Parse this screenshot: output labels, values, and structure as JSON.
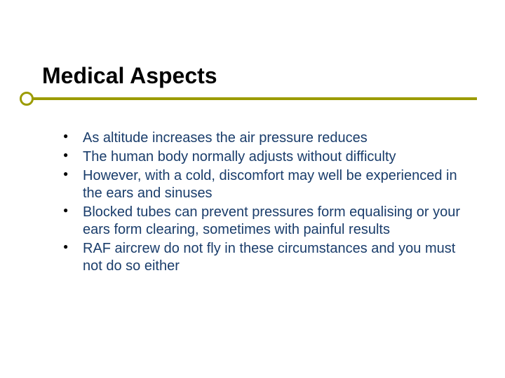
{
  "slide": {
    "title": "Medical Aspects",
    "title_color": "#000000",
    "title_fontsize": 32,
    "underline_color": "#9b9b00",
    "text_color": "#1a3d6b",
    "bullet_color": "#000000",
    "body_fontsize": 20,
    "background_color": "#ffffff",
    "bullets": [
      "As altitude increases the air pressure reduces",
      "The human body normally adjusts without difficulty",
      "However, with a cold, discomfort may well be experienced in the ears and sinuses",
      "Blocked tubes can prevent pressures form equalising or your ears form clearing, sometimes with painful results",
      "RAF aircrew do not fly in these circumstances and you must not do so either"
    ]
  }
}
